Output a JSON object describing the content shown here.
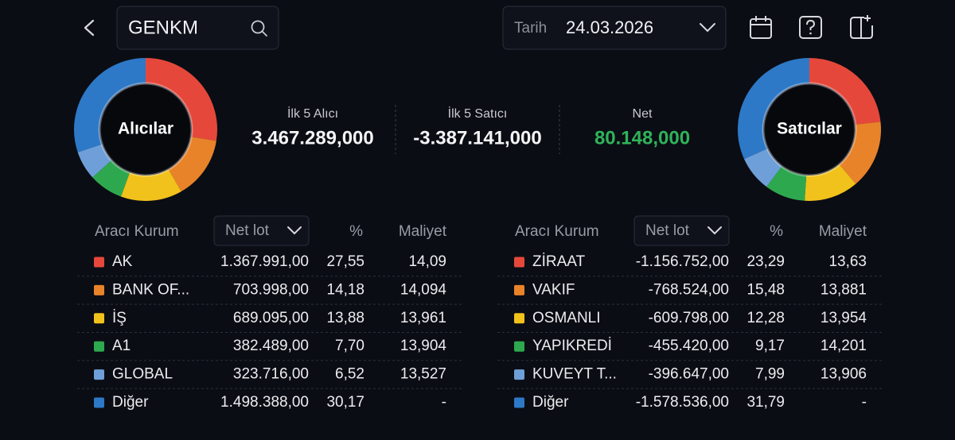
{
  "header": {
    "search": "GENKM",
    "date_label": "Tarih",
    "date": "24.03.2026"
  },
  "summary": [
    {
      "label": "İlk 5 Alıcı",
      "value": "3.467.289,000"
    },
    {
      "label": "İlk 5 Satıcı",
      "value": "-3.387.141,000"
    },
    {
      "label": "Net",
      "value": "80.148,000"
    }
  ],
  "colors": [
    "#e5483b",
    "#e8832a",
    "#f1c21b",
    "#2ea84f",
    "#6e9fd8",
    "#2d79c7"
  ],
  "buyers": {
    "title": "Alıcılar",
    "columns": [
      "Aracı Kurum",
      "Net lot",
      "%",
      "Maliyet"
    ],
    "rows": [
      [
        "AK",
        "1.367.991,00",
        "27,55",
        "14,09"
      ],
      [
        "BANK OF...",
        "703.998,00",
        "14,18",
        "14,094"
      ],
      [
        "İŞ",
        "689.095,00",
        "13,88",
        "13,961"
      ],
      [
        "A1",
        "382.489,00",
        "7,70",
        "13,904"
      ],
      [
        "GLOBAL",
        "323.716,00",
        "6,52",
        "13,527"
      ],
      [
        "Diğer",
        "1.498.388,00",
        "30,17",
        "-"
      ]
    ]
  },
  "sellers": {
    "title": "Satıcılar",
    "columns": [
      "Aracı Kurum",
      "Net lot",
      "%",
      "Maliyet"
    ],
    "rows": [
      [
        "ZİRAAT",
        "-1.156.752,00",
        "23,29",
        "13,63"
      ],
      [
        "VAKIF",
        "-768.524,00",
        "15,48",
        "13,881"
      ],
      [
        "OSMANLI",
        "-609.798,00",
        "12,28",
        "13,954"
      ],
      [
        "YAPIKREDİ",
        "-455.420,00",
        "9,17",
        "14,201"
      ],
      [
        "KUVEYT T...",
        "-396.647,00",
        "7,99",
        "13,906"
      ],
      [
        "Diğer",
        "-1.578.536,00",
        "31,79",
        "-"
      ]
    ]
  }
}
